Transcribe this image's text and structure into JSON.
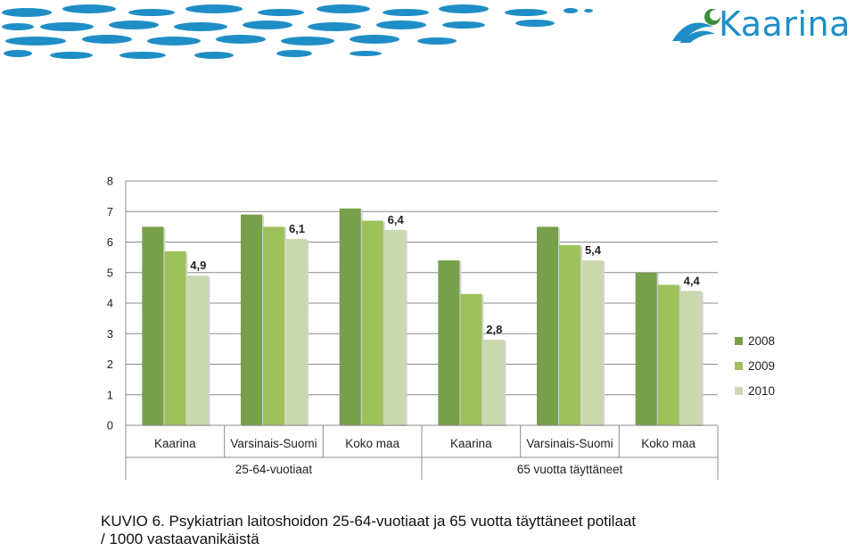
{
  "header": {
    "logo_text": "Kaarina",
    "colors": {
      "brand_blue": "#1f8ec6",
      "logo_green": "#3a8f3a"
    }
  },
  "chart_data": {
    "type": "bar",
    "groups": [
      {
        "label": "25-64-vuotiaat",
        "categories": [
          "Kaarina",
          "Varsinais-Suomi",
          "Koko maa"
        ]
      },
      {
        "label": "65 vuotta täyttäneet",
        "categories": [
          "Kaarina",
          "Varsinais-Suomi",
          "Koko maa"
        ]
      }
    ],
    "series": [
      {
        "name": "2008",
        "color": "#77a04a",
        "values": [
          6.5,
          6.9,
          7.1,
          5.4,
          6.5,
          5.0
        ]
      },
      {
        "name": "2009",
        "color": "#9fc15b",
        "values": [
          5.7,
          6.5,
          6.7,
          4.3,
          5.9,
          4.6
        ]
      },
      {
        "name": "2010",
        "color": "#c9d9ad",
        "values": [
          4.9,
          6.1,
          6.4,
          2.8,
          5.4,
          4.4
        ]
      }
    ],
    "data_labels": {
      "series_index": 2,
      "labels": [
        "4,9",
        "6,1",
        "6,4",
        "2,8",
        "5,4",
        "4,4"
      ]
    },
    "y_ticks": [
      "0",
      "1",
      "2",
      "3",
      "4",
      "5",
      "6",
      "7",
      "8"
    ],
    "ylim": [
      0,
      8
    ],
    "grid": true,
    "legend_position": "right"
  },
  "caption": {
    "line1": "KUVIO 6. Psykiatrian laitoshoidon 25-64-vuotiaat ja 65 vuotta täyttäneet potilaat",
    "line2": "/ 1000 vastaavanikäistä"
  }
}
